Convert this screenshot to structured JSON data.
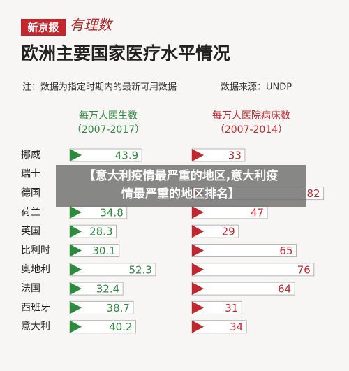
{
  "header": {
    "logo": "新京报",
    "brand": "有理数"
  },
  "title": "欧洲主要国家医疗水平情况",
  "note": "注：数据为指定时期内的最新可用数据",
  "source": "数据来源：UNDP",
  "overlay": [
    "【意大利疫情最严重的地区,意大利疫",
    "情最严重的地区排名】"
  ],
  "chart_data": {
    "type": "bar",
    "orientation": "horizontal",
    "categories": [
      "挪威",
      "瑞士",
      "德国",
      "荷兰",
      "英国",
      "比利时",
      "奥地利",
      "法国",
      "西班牙",
      "意大利"
    ],
    "series": [
      {
        "name": "每万人医生数",
        "period": "（2007-2017）",
        "color": "#2e8b3e",
        "values": [
          43.9,
          null,
          null,
          34.8,
          28.3,
          30.1,
          52.3,
          32.4,
          38.7,
          40.2
        ]
      },
      {
        "name": "每万人医院病床数",
        "period": "（2007-2014）",
        "color": "#c4262e",
        "values": [
          33,
          null,
          82,
          47,
          29,
          65,
          76,
          64,
          31,
          34
        ]
      }
    ]
  }
}
